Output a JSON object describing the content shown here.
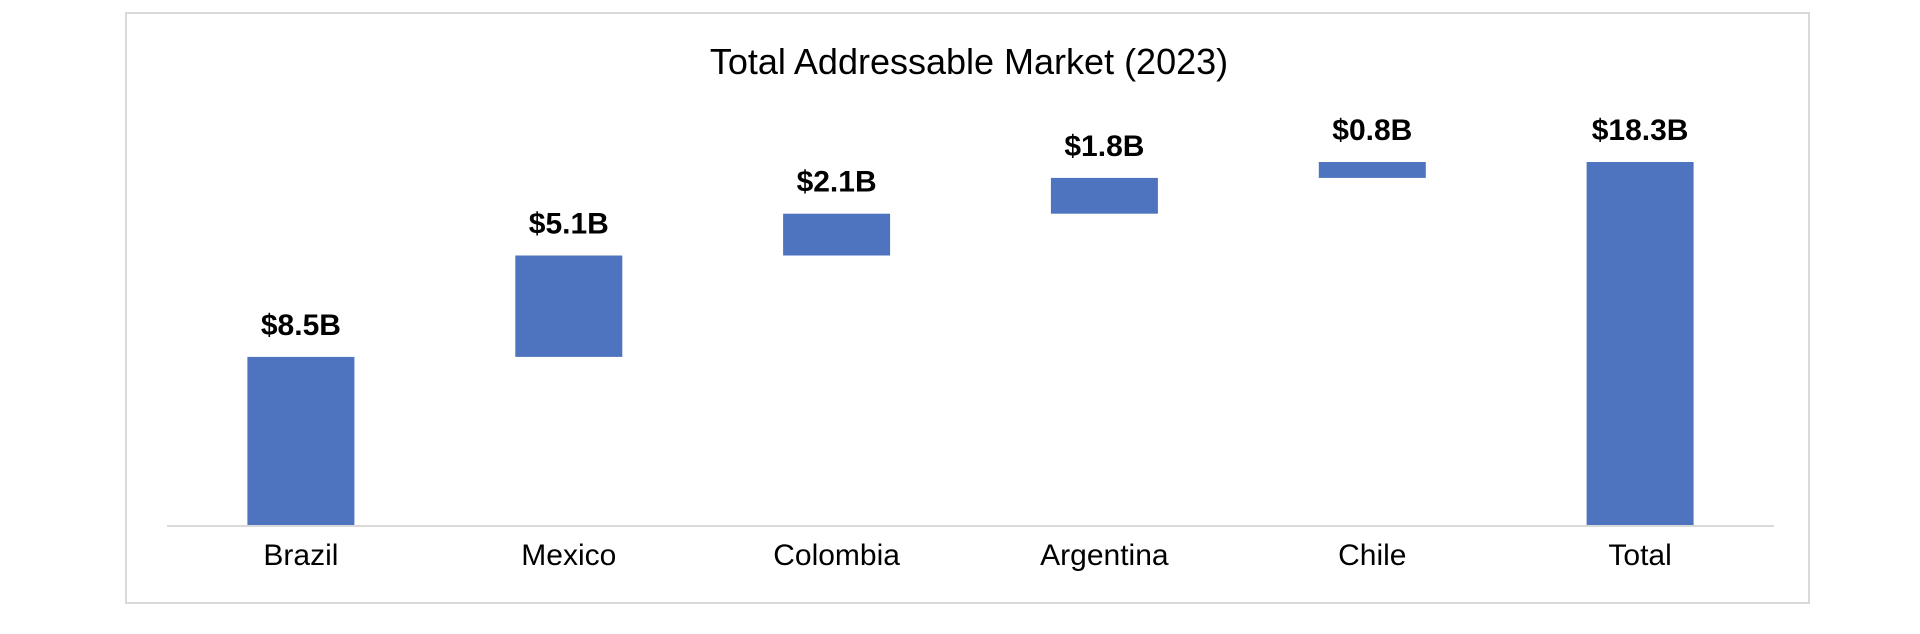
{
  "chart_data": {
    "type": "bar",
    "subtype": "waterfall",
    "title": "Total Addressable Market (2023)",
    "xlabel": "",
    "ylabel": "",
    "categories": [
      "Brazil",
      "Mexico",
      "Colombia",
      "Argentina",
      "Chile",
      "Total"
    ],
    "values": [
      8.5,
      5.1,
      2.1,
      1.8,
      0.8,
      18.3
    ],
    "is_total": [
      false,
      false,
      false,
      false,
      false,
      true
    ],
    "data_labels": [
      "$8.5B",
      "$5.1B",
      "$2.1B",
      "$1.8B",
      "$0.8B",
      "$18.3B"
    ],
    "ylim": [
      0,
      18.3
    ],
    "y_axis_visible": false,
    "grid": false,
    "legend": "none",
    "bar_color": "#4e74bf",
    "axis_color": "#d9d9d9",
    "frame_color": "#d9d9d9"
  }
}
